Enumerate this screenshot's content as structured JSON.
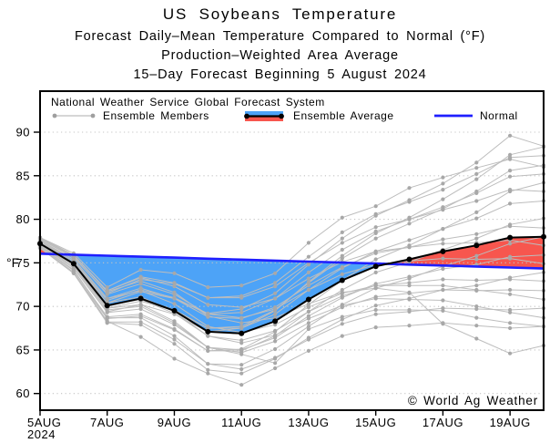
{
  "titles": {
    "line1": "US Soybeans Temperature",
    "line2": "Forecast Daily–Mean Temperature Compared to Normal (°F)",
    "line3": "Production–Weighted Area Average",
    "line4": "15–Day Forecast Beginning 5 August 2024"
  },
  "legend": {
    "header": "National Weather Service Global Forecast System",
    "items": [
      {
        "label": "Ensemble Members"
      },
      {
        "label": "Ensemble Average"
      },
      {
        "label": "Normal"
      }
    ]
  },
  "watermark": "© World Ag Weather",
  "chart_data": {
    "type": "line",
    "title": "US Soybeans Temperature",
    "subtitle": "Forecast Daily–Mean Temperature Compared to Normal (°F), Production-Weighted Area Average, 15-Day Forecast Beginning 5 August 2024",
    "xlabel": "",
    "ylabel": "°F",
    "ylim": [
      58,
      95
    ],
    "yticks": [
      60,
      65,
      70,
      75,
      80,
      85,
      90
    ],
    "grid": "horizontal-dotted",
    "legend_position": "top-inside",
    "dates": [
      "5AUG",
      "6AUG",
      "7AUG",
      "8AUG",
      "9AUG",
      "10AUG",
      "11AUG",
      "12AUG",
      "13AUG",
      "14AUG",
      "15AUG",
      "16AUG",
      "17AUG",
      "18AUG",
      "19AUG",
      "20AUG"
    ],
    "xticks": [
      {
        "day": 0,
        "label": "5AUG"
      },
      {
        "day": 2,
        "label": "7AUG"
      },
      {
        "day": 4,
        "label": "9AUG"
      },
      {
        "day": 6,
        "label": "11AUG"
      },
      {
        "day": 8,
        "label": "13AUG"
      },
      {
        "day": 10,
        "label": "15AUG"
      },
      {
        "day": 12,
        "label": "17AUG"
      },
      {
        "day": 14,
        "label": "19AUG"
      }
    ],
    "year_label": "2024",
    "normal": [
      76.05,
      75.94,
      75.82,
      75.71,
      75.6,
      75.48,
      75.37,
      75.26,
      75.14,
      75.03,
      74.92,
      74.8,
      74.69,
      74.58,
      74.46,
      74.35
    ],
    "ensemble_average": [
      77.2,
      74.9,
      70.1,
      70.9,
      69.5,
      67.1,
      66.9,
      68.3,
      70.8,
      73.0,
      74.6,
      75.4,
      76.3,
      77.0,
      77.9,
      78.0
    ],
    "ensemble_members": [
      [
        76.7,
        73.8,
        68.1,
        67.9,
        65.7,
        62.7,
        62.3,
        64.0,
        66.4,
        68.5,
        70.1,
        70.9,
        71.9,
        72.4,
        73.3,
        73.9
      ],
      [
        76.8,
        73.9,
        68.6,
        68.9,
        67.3,
        64.9,
        65.1,
        67.1,
        70.2,
        73.0,
        75.4,
        77.0,
        78.9,
        80.8,
        83.2,
        84.2
      ],
      [
        76.8,
        73.9,
        68.3,
        66.5,
        64.0,
        62.3,
        61.0,
        62.9,
        64.9,
        66.6,
        67.6,
        67.8,
        68.1,
        67.8,
        67.5,
        67.7
      ],
      [
        76.9,
        74.1,
        68.8,
        69.1,
        67.4,
        64.9,
        64.9,
        66.6,
        69.4,
        71.9,
        73.9,
        75.1,
        76.5,
        77.8,
        79.4,
        80.1
      ],
      [
        76.9,
        74.2,
        68.7,
        68.7,
        66.6,
        63.4,
        62.8,
        64.1,
        66.2,
        68.0,
        69.1,
        69.4,
        69.8,
        69.7,
        69.6,
        69.8
      ],
      [
        77.0,
        74.4,
        69.4,
        70.2,
        69.1,
        67.1,
        67.5,
        69.5,
        72.8,
        75.8,
        78.4,
        80.2,
        82.3,
        84.6,
        87.4,
        88.3
      ],
      [
        77.1,
        74.4,
        69.3,
        69.7,
        67.9,
        65.3,
        65.0,
        66.4,
        68.9,
        71.0,
        72.6,
        73.4,
        74.3,
        74.8,
        75.7,
        75.9
      ],
      [
        77.1,
        74.6,
        69.8,
        70.6,
        69.5,
        67.5,
        67.7,
        69.6,
        72.7,
        75.5,
        77.8,
        79.5,
        81.2,
        83.2,
        85.6,
        86.2
      ],
      [
        77.2,
        74.6,
        69.6,
        70.0,
        68.1,
        65.3,
        64.7,
        66.0,
        68.1,
        69.9,
        71.1,
        71.5,
        71.9,
        71.8,
        71.9,
        71.8
      ],
      [
        77.2,
        74.8,
        70.0,
        70.9,
        69.6,
        67.5,
        67.5,
        69.1,
        71.9,
        74.4,
        76.3,
        77.6,
        78.9,
        80.1,
        81.8,
        82.1
      ],
      [
        77.3,
        74.8,
        69.8,
        70.2,
        68.3,
        65.3,
        64.5,
        63.5,
        67.4,
        68.8,
        69.6,
        69.6,
        69.5,
        68.7,
        68.1,
        67.7
      ],
      [
        77.3,
        75.0,
        70.4,
        71.7,
        70.9,
        69.2,
        69.7,
        71.5,
        74.8,
        77.8,
        80.4,
        82.2,
        84.1,
        86.5,
        89.6,
        88.4
      ],
      [
        77.4,
        75.0,
        70.1,
        70.8,
        69.2,
        66.6,
        66.1,
        67.2,
        69.4,
        71.2,
        72.4,
        72.7,
        73.1,
        73.0,
        73.1,
        72.9
      ],
      [
        77.4,
        75.2,
        70.7,
        71.9,
        71.0,
        69.1,
        69.3,
        70.9,
        73.9,
        76.5,
        78.6,
        80.0,
        81.4,
        83.0,
        84.9,
        85.2
      ],
      [
        77.5,
        75.2,
        70.4,
        71.1,
        69.4,
        66.6,
        65.8,
        66.7,
        68.6,
        70.1,
        70.9,
        70.8,
        70.7,
        70.0,
        69.3,
        68.7
      ],
      [
        77.5,
        75.4,
        70.9,
        72.1,
        70.9,
        68.8,
        68.6,
        69.9,
        72.4,
        74.5,
        76.1,
        76.8,
        77.7,
        78.3,
        79.2,
        79.0
      ],
      [
        77.6,
        75.4,
        70.9,
        71.8,
        70.3,
        67.7,
        67.0,
        67.9,
        69.9,
        71.5,
        72.4,
        72.4,
        72.4,
        71.9,
        71.4,
        70.8
      ],
      [
        77.7,
        75.6,
        71.5,
        73.1,
        72.6,
        71.0,
        71.2,
        72.7,
        75.7,
        78.5,
        80.6,
        82.0,
        83.4,
        85.2,
        87.1,
        87.3
      ],
      [
        77.7,
        75.7,
        71.4,
        72.6,
        71.4,
        69.1,
        68.7,
        69.7,
        71.9,
        73.7,
        74.8,
        75.2,
        75.5,
        75.4,
        75.5,
        74.9
      ],
      [
        77.8,
        75.8,
        71.8,
        73.4,
        72.7,
        71.0,
        71.0,
        72.3,
        75.0,
        77.3,
        79.1,
        80.0,
        81.1,
        82.1,
        83.4,
        83.2
      ],
      [
        77.8,
        75.9,
        71.8,
        73.3,
        72.3,
        70.2,
        69.9,
        70.9,
        73.2,
        75.1,
        76.3,
        76.8,
        77.2,
        77.3,
        77.6,
        77.0
      ],
      [
        77.9,
        76.1,
        72.2,
        74.2,
        73.8,
        72.2,
        72.4,
        73.8,
        77.3,
        80.2,
        81.5,
        83.6,
        84.8,
        85.9,
        86.9,
        86.0
      ],
      [
        76.7,
        73.8,
        68.2,
        68.2,
        66.2,
        63.4,
        63.3,
        65.1,
        67.7,
        70.2,
        72.1,
        73.2,
        74.6,
        75.8,
        77.2,
        78.0
      ],
      [
        77.9,
        75.9,
        71.7,
        72.9,
        71.6,
        68.9,
        68.1,
        68.7,
        70.3,
        71.6,
        72.1,
        71.6,
        68.0,
        66.3,
        64.6,
        65.5
      ]
    ],
    "colors": {
      "above_normal_fill": "#f7564e",
      "below_normal_fill": "#4da3f7",
      "normal_line": "#1f1fff",
      "average_line": "#000000",
      "member_line": "#bdbdbd",
      "member_dot": "#a8a8a8",
      "grid": "#c4c4c4"
    }
  }
}
